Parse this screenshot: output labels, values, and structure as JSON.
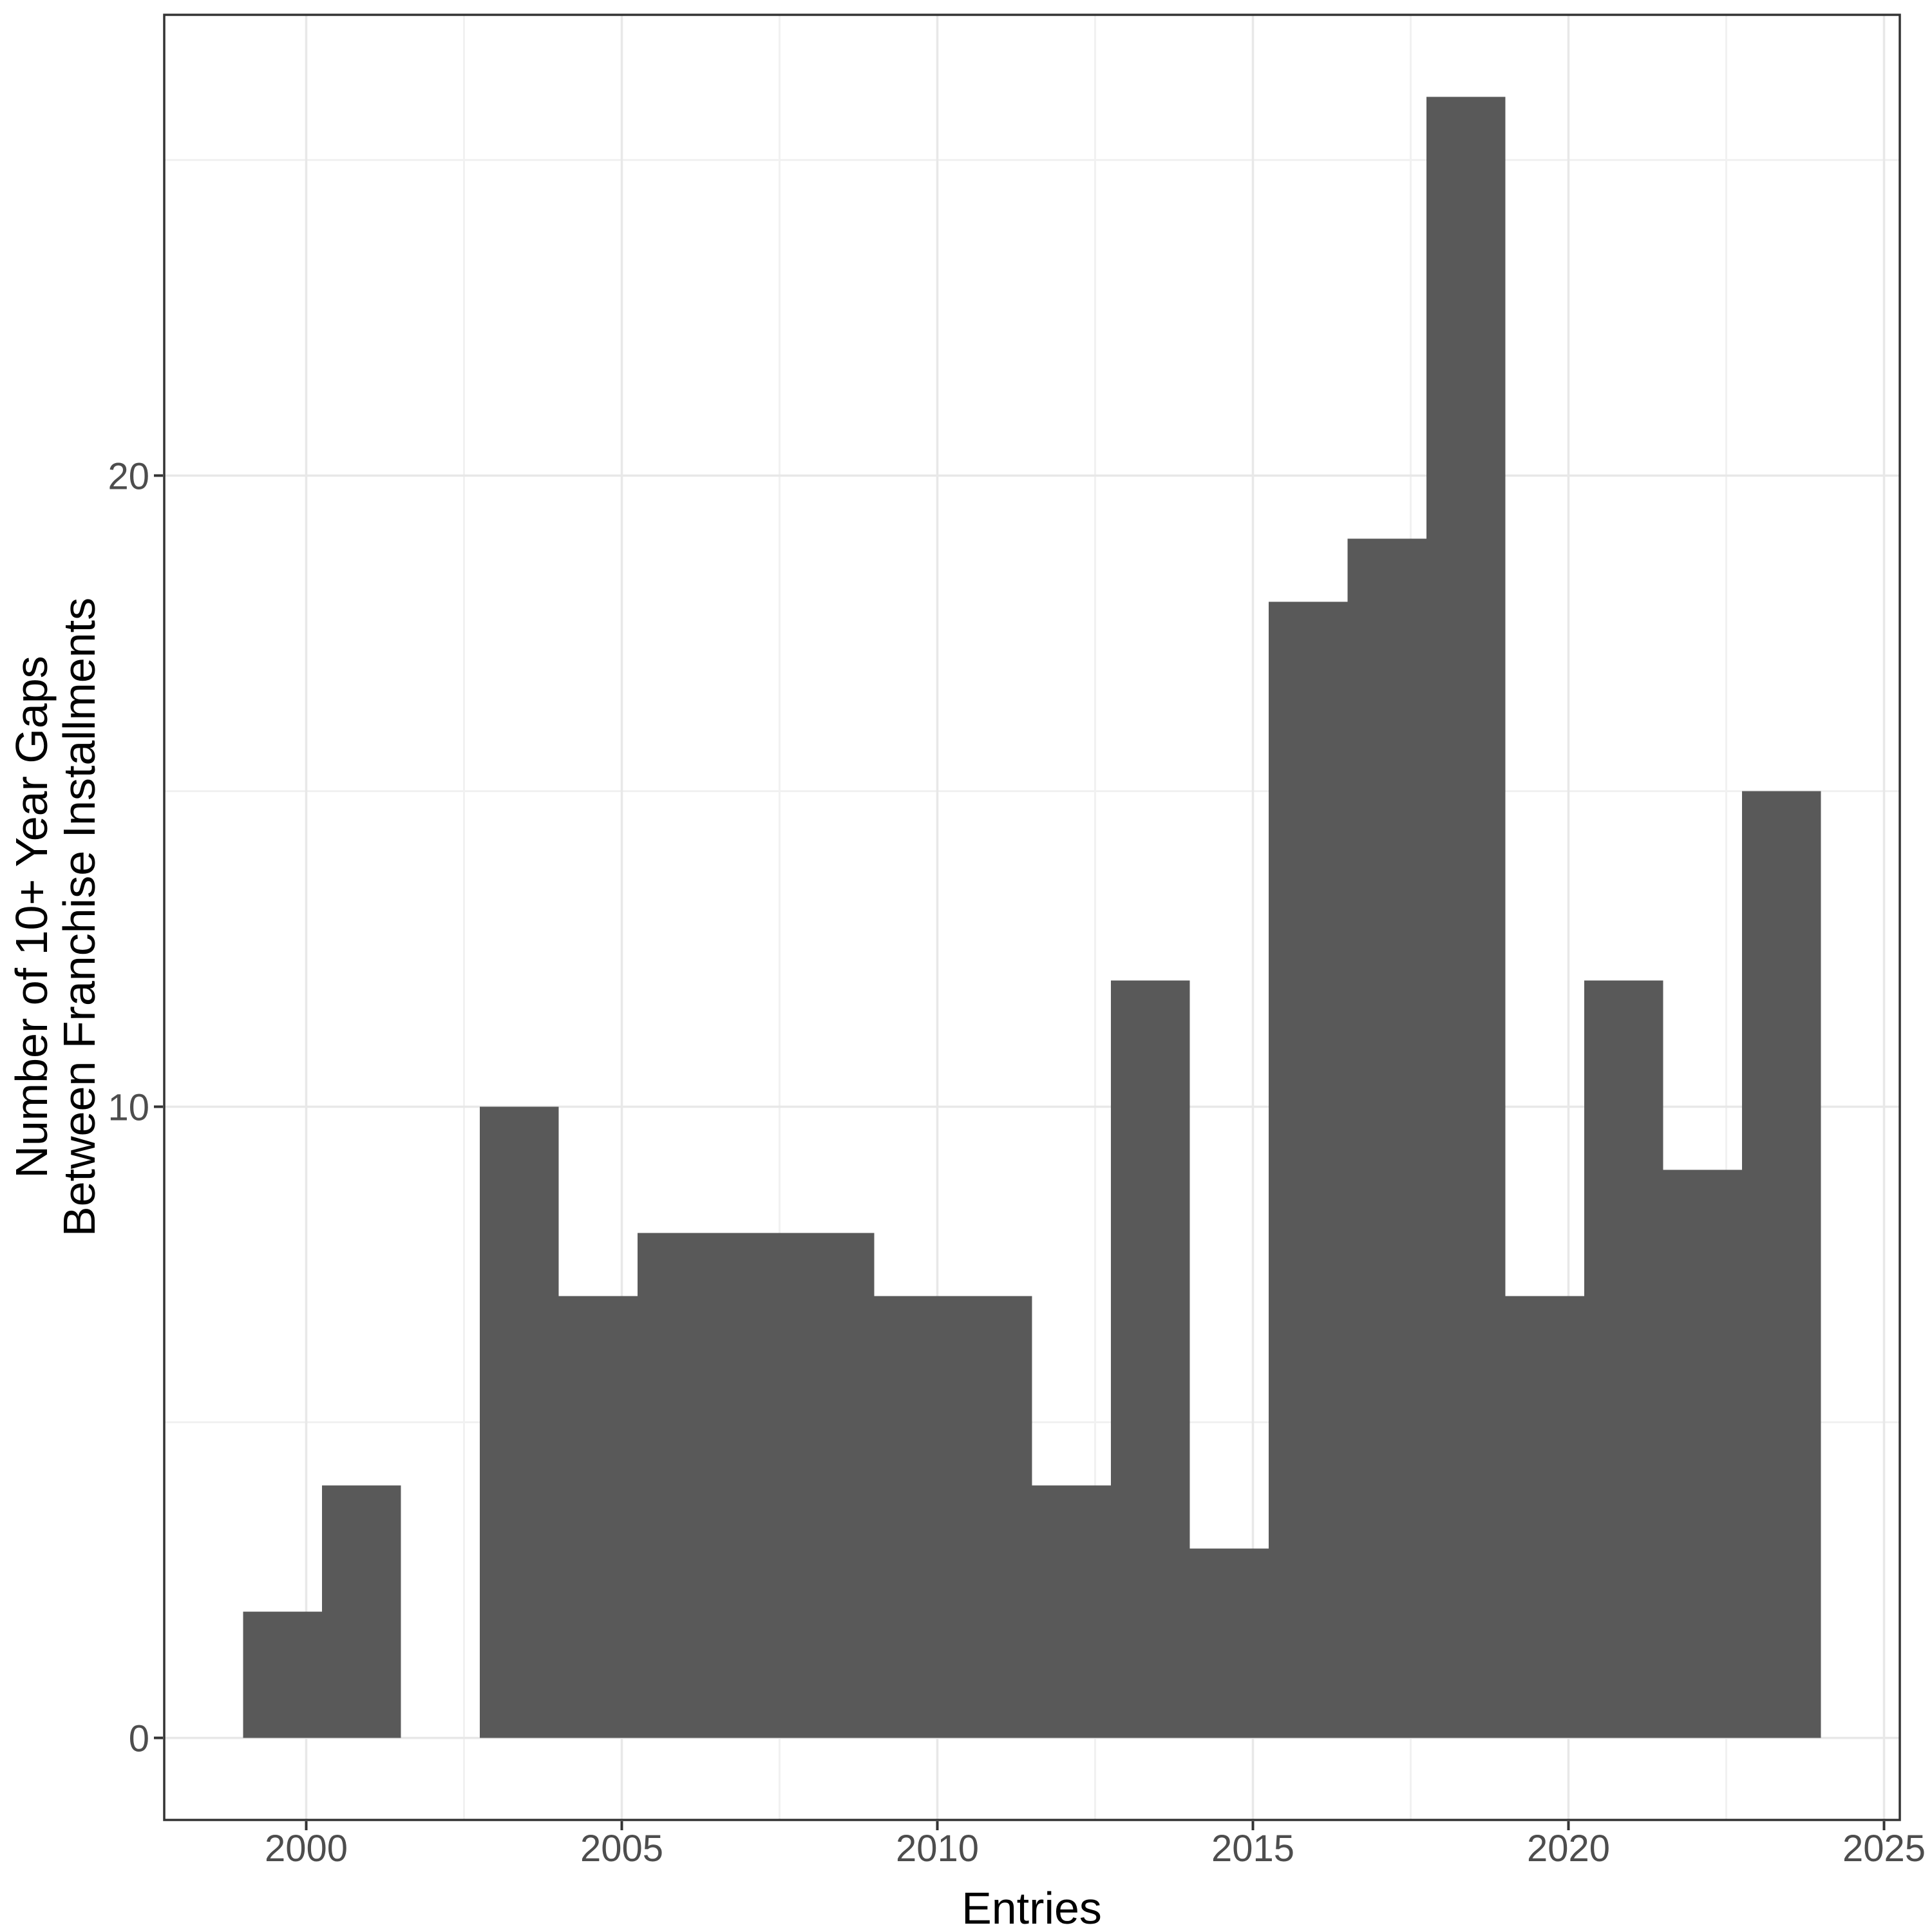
{
  "chart_data": {
    "type": "bar",
    "subtype": "histogram",
    "title": "",
    "xlabel": "Entries",
    "ylabel": "Number of 10+ Year Gaps\nBetween Franchise Installments",
    "ylabel_lines": [
      "Number of 10+ Year Gaps",
      "Between Franchise Installments"
    ],
    "x_breaks": [
      2000,
      2005,
      2010,
      2015,
      2020,
      2025
    ],
    "x_tick_labels": [
      "2000",
      "2005",
      "2010",
      "2015",
      "2020",
      "2025"
    ],
    "x_minor_breaks": [
      2002.5,
      2007.5,
      2012.5,
      2017.5,
      2022.5
    ],
    "y_breaks": [
      0,
      10,
      20
    ],
    "y_tick_labels": [
      "0",
      "10",
      "20"
    ],
    "y_minor_breaks": [
      5,
      15,
      25
    ],
    "xlim": [
      1997.75,
      2025.25
    ],
    "ylim": [
      -1.3,
      27.3
    ],
    "bin_width_years": 1.25,
    "bin_edges": [
      1999,
      2000.25,
      2001.5,
      2002.75,
      2004,
      2005.25,
      2006.5,
      2007.75,
      2009,
      2010.25,
      2011.5,
      2012.75,
      2014,
      2015.25,
      2016.5,
      2017.75,
      2019,
      2020.25,
      2021.5,
      2022.75,
      2024
    ],
    "counts": [
      2,
      4,
      0,
      10,
      7,
      8,
      8,
      8,
      7,
      7,
      4,
      12,
      3,
      18,
      19,
      26,
      7,
      12,
      9,
      15
    ],
    "max_count": 26,
    "legend_position": "none",
    "grid": "on",
    "colors": {
      "bar_fill": "#595959",
      "grid_major": "#E8E8E8",
      "grid_minor": "#F1F1F1",
      "panel_border": "#333333",
      "tick_mark": "#333333",
      "tick_label": "#4D4D4D",
      "axis_title": "#000000",
      "background": "#FFFFFF",
      "panel_background": "#FFFFFF"
    }
  }
}
